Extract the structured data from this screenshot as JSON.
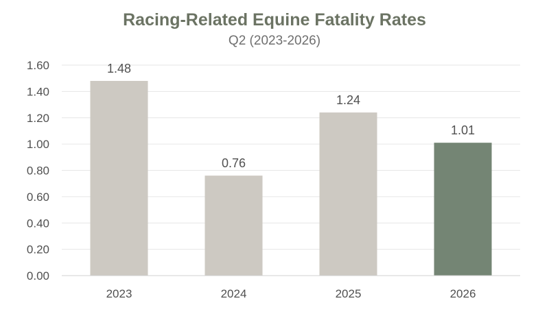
{
  "chart_data": {
    "type": "bar",
    "title": "Racing-Related Equine Fatality Rates",
    "subtitle": "Q2 (2023-2026)",
    "categories": [
      "2023",
      "2024",
      "2025",
      "2026"
    ],
    "values": [
      1.48,
      0.76,
      1.24,
      1.01
    ],
    "data_labels": [
      "1.48",
      "0.76",
      "1.24",
      "1.01"
    ],
    "y_ticks": [
      "0.00",
      "0.20",
      "0.40",
      "0.60",
      "0.80",
      "1.00",
      "1.20",
      "1.40",
      "1.60"
    ],
    "ylim": [
      0,
      1.6
    ],
    "grid": true,
    "legend": "none",
    "colors": {
      "bar": "#cdc9c2",
      "highlight_bar": "#748574",
      "title": "#6b7363",
      "text": "#505050",
      "grid": "#e6e6e6"
    },
    "highlight_index": 3
  }
}
